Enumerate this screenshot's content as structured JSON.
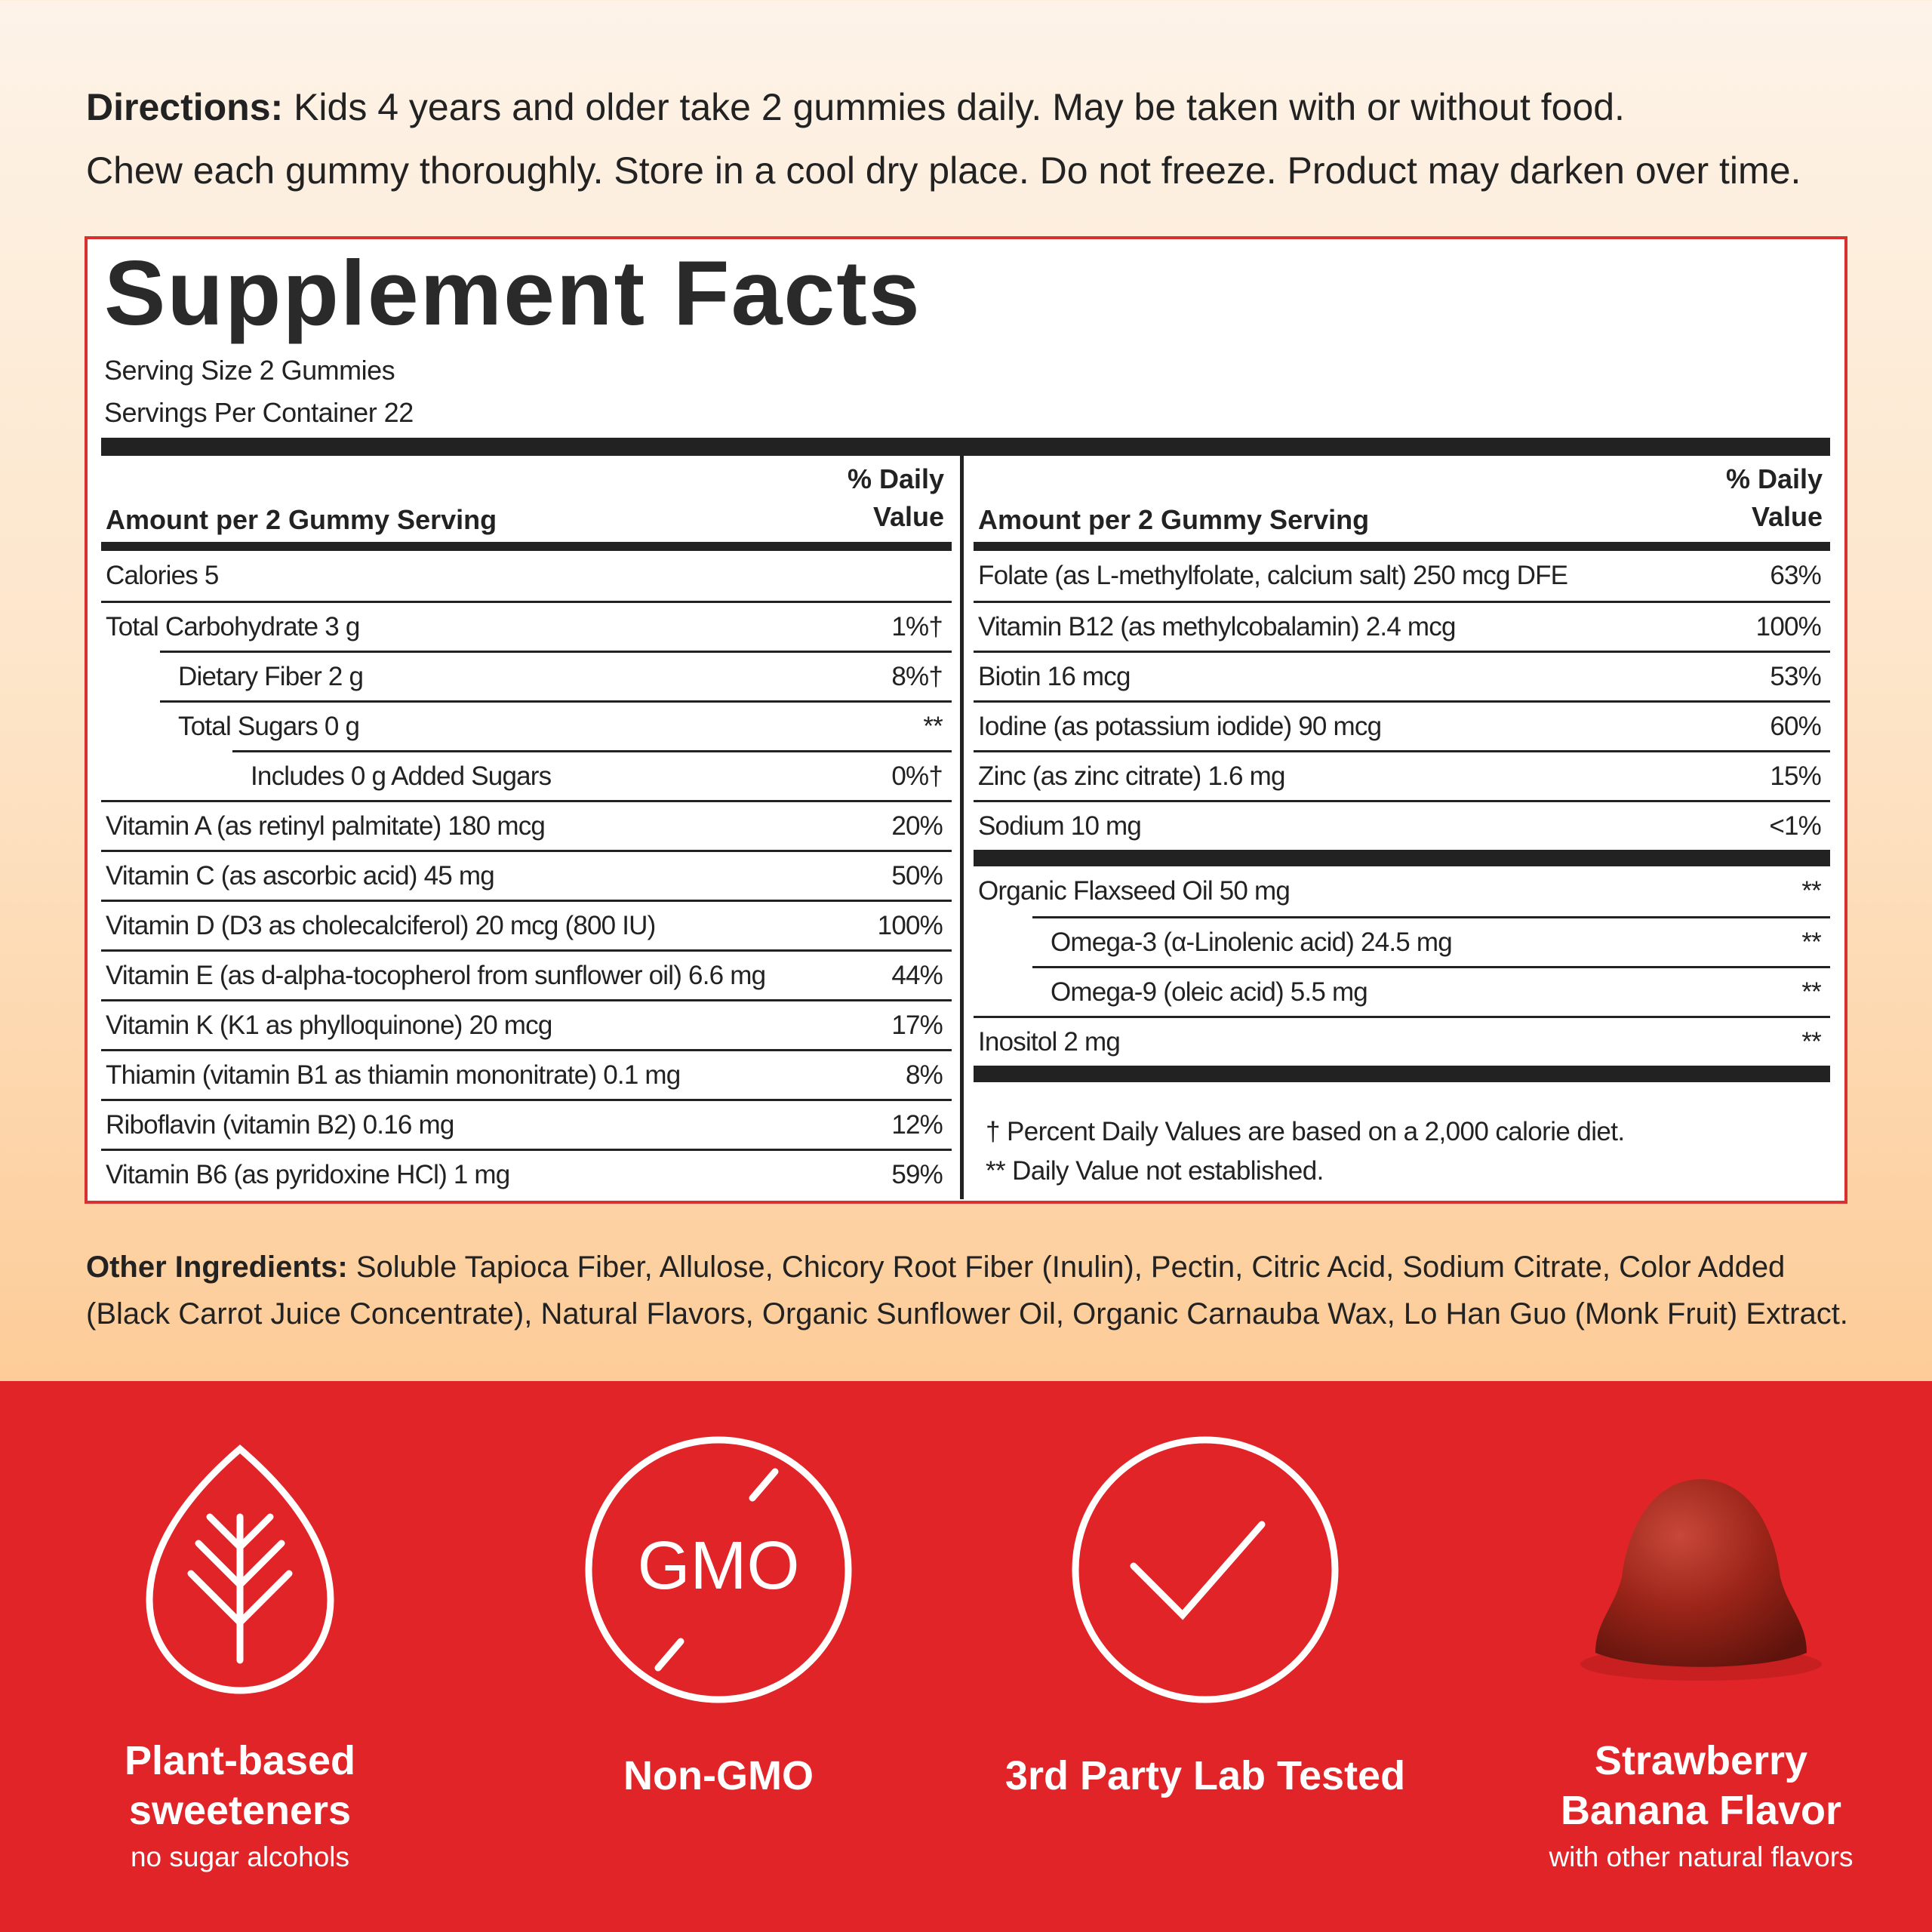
{
  "directions": {
    "label": "Directions:",
    "lines": [
      "Kids 4 years and older take 2 gummies daily. May be taken with or without food.",
      "Chew each gummy thoroughly. Store in a cool dry place. Do not freeze. Product may darken over time."
    ]
  },
  "facts": {
    "title": "Supplement Facts",
    "serving_size": "Serving Size 2 Gummies",
    "servings_per_container": "Servings Per Container 22",
    "left": {
      "header_amount": "Amount per 2 Gummy Serving",
      "header_dv": [
        "% Daily",
        "Value"
      ],
      "rows": [
        {
          "name": "Calories 5"
        },
        {
          "name": "Total Carbohydrate 3 g",
          "dv": "1%†",
          "sub": [
            {
              "name": "Dietary Fiber 2 g",
              "dv": "8%†"
            },
            {
              "name": "Total Sugars 0 g",
              "dv": "**",
              "sub": [
                {
                  "name": "Includes 0 g Added Sugars",
                  "dv": "0%†"
                }
              ]
            }
          ]
        },
        {
          "name": "Vitamin A (as retinyl palmitate) 180 mcg",
          "dv": "20%"
        },
        {
          "name": "Vitamin C (as ascorbic acid) 45 mg",
          "dv": "50%"
        },
        {
          "name": "Vitamin D (D3 as cholecalciferol) 20 mcg (800 IU)",
          "dv": "100%"
        },
        {
          "name": "Vitamin E (as d-alpha-tocopherol from sunflower oil) 6.6 mg",
          "dv": "44%"
        },
        {
          "name": "Vitamin K (K1 as phylloquinone) 20 mcg",
          "dv": "17%"
        },
        {
          "name": "Thiamin (vitamin B1 as thiamin mononitrate) 0.1 mg",
          "dv": "8%"
        },
        {
          "name": "Riboflavin (vitamin B2) 0.16 mg",
          "dv": "12%"
        },
        {
          "name": "Vitamin B6 (as pyridoxine HCl) 1 mg",
          "dv": "59%"
        }
      ]
    },
    "right": {
      "header_amount": "Amount per 2 Gummy Serving",
      "header_dv": [
        "% Daily",
        "Value"
      ],
      "groups": [
        [
          {
            "name": "Folate (as L-methylfolate, calcium salt) 250 mcg DFE",
            "dv": "63%"
          },
          {
            "name": "Vitamin B12 (as methylcobalamin) 2.4 mcg",
            "dv": "100%"
          },
          {
            "name": "Biotin 16 mcg",
            "dv": "53%"
          },
          {
            "name": "Iodine (as potassium iodide) 90 mcg",
            "dv": "60%"
          },
          {
            "name": "Zinc (as zinc citrate) 1.6 mg",
            "dv": "15%"
          },
          {
            "name": "Sodium 10 mg",
            "dv": "<1%"
          }
        ],
        [
          {
            "name": "Organic Flaxseed Oil 50 mg",
            "dv": "**",
            "sub": [
              {
                "name": "Omega-3 (α-Linolenic acid) 24.5 mg",
                "dv": "**"
              },
              {
                "name": "Omega-9 (oleic acid) 5.5 mg",
                "dv": "**"
              }
            ]
          },
          {
            "name": "Inositol 2 mg",
            "dv": "**"
          }
        ]
      ],
      "footnotes": [
        "† Percent Daily Values are based on a 2,000 calorie diet.",
        "** Daily Value not established."
      ]
    }
  },
  "other_ingredients": {
    "label": "Other Ingredients:",
    "text": "Soluble Tapioca Fiber, Allulose, Chicory Root Fiber (Inulin), Pectin, Citric Acid, Sodium Citrate, Color Added (Black Carrot Juice Concentrate), Natural Flavors, Organic Sunflower Oil, Organic Carnauba Wax, Lo Han Guo (Monk Fruit) Extract."
  },
  "badges": [
    {
      "title": [
        "Plant-based",
        "sweeteners"
      ],
      "subtitle": "no sugar alcohols"
    },
    {
      "title": [
        "Non-GMO"
      ],
      "icon_text": "GMO"
    },
    {
      "title": [
        "3rd Party Lab Tested"
      ]
    },
    {
      "title": [
        "Strawberry",
        "Banana Flavor"
      ],
      "subtitle": "with other natural flavors"
    }
  ]
}
